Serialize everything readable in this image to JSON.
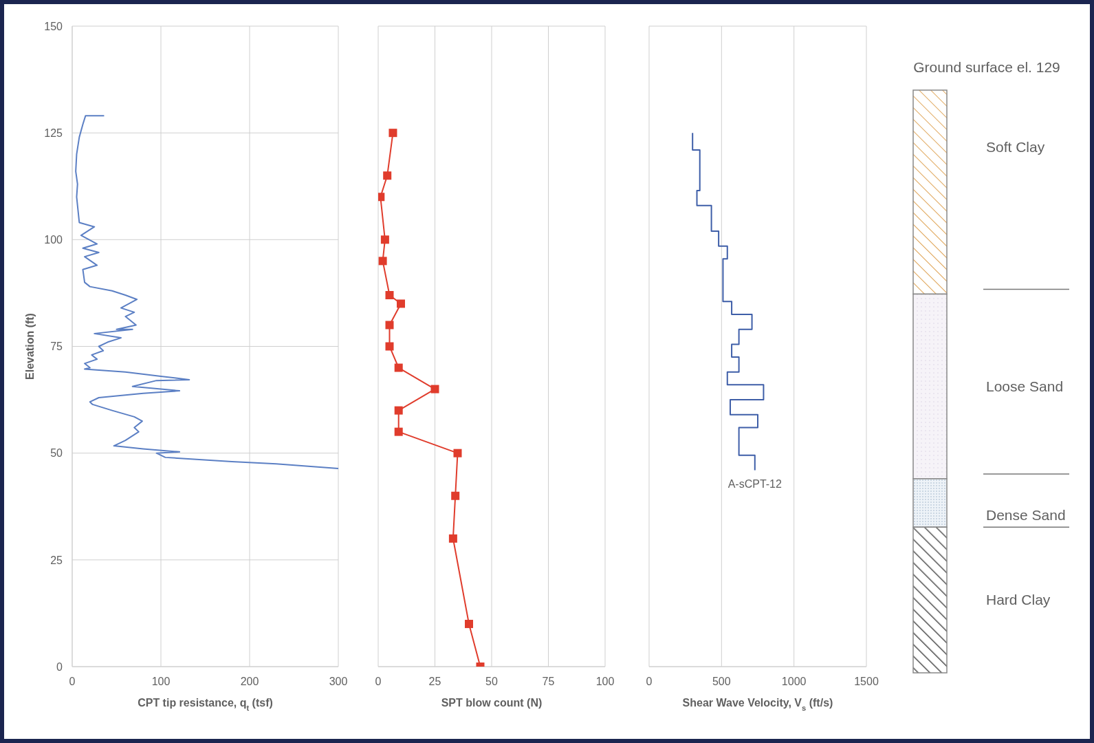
{
  "chart_data": [
    {
      "type": "line",
      "ylabel": "Elevation (ft)",
      "xlabel": "CPT tip resistance, q$_{t}$ (tsf)",
      "xlim": [
        0,
        300
      ],
      "xticks": [
        0,
        100,
        200,
        300
      ],
      "ylim": [
        0,
        150
      ],
      "yticks": [
        0,
        25,
        50,
        75,
        100,
        125,
        150
      ],
      "grid": true,
      "marker": "none",
      "line_style": "solid",
      "color": "#5b7fc4",
      "x": [
        36,
        15,
        12,
        8,
        5,
        4,
        6,
        5,
        7,
        8,
        25,
        10,
        28,
        12,
        30,
        14,
        28,
        12,
        14,
        20,
        45,
        60,
        73,
        55,
        70,
        60,
        72,
        50,
        68,
        25,
        55,
        40,
        30,
        35,
        22,
        28,
        14,
        20,
        14,
        60,
        100,
        132,
        95,
        68,
        121,
        80,
        30,
        20,
        23,
        45,
        70,
        79,
        70,
        75,
        60,
        47,
        80,
        121,
        95,
        105,
        180,
        230,
        300
      ],
      "values": [
        129,
        129,
        127,
        124,
        120,
        116,
        113,
        110,
        106,
        104,
        103,
        101,
        99,
        98,
        97,
        96,
        94,
        93,
        90,
        89,
        88,
        87,
        86,
        84,
        83,
        82,
        80,
        79,
        79,
        78,
        77,
        76,
        75,
        74,
        73,
        72,
        71,
        70,
        69.7,
        69,
        68,
        67.2,
        67,
        65.6,
        64.6,
        64,
        63,
        62,
        61.4,
        60,
        58.5,
        57.5,
        56,
        55,
        53,
        51.7,
        51,
        50.3,
        50,
        49,
        48,
        47.5,
        46.4
      ]
    },
    {
      "type": "line",
      "xlabel": "SPT blow count (N)",
      "xlim": [
        0,
        100
      ],
      "xticks": [
        0,
        25,
        50,
        75,
        100
      ],
      "ylim": [
        0,
        150
      ],
      "yticks": [
        0,
        25,
        50,
        75,
        100,
        125,
        150
      ],
      "tick_labels": "x",
      "grid": true,
      "marker": "square",
      "line_style": "solid",
      "color": "#e03c2c",
      "x": [
        6.5,
        4,
        1,
        3,
        2,
        5,
        10,
        5,
        5,
        9,
        25,
        9,
        9,
        35,
        34,
        33,
        40,
        45
      ],
      "values": [
        125,
        115,
        110,
        100,
        95,
        87,
        85,
        80,
        75,
        70,
        65,
        60,
        55,
        50,
        40,
        30,
        10,
        0
      ]
    },
    {
      "type": "line",
      "xlabel": "Shear Wave Velocity, V$_{s}$ (ft/s)",
      "xlim": [
        0,
        1500
      ],
      "xticks": [
        0,
        500,
        1000,
        1500
      ],
      "ylim": [
        0,
        150
      ],
      "yticks": [
        0,
        25,
        50,
        75,
        100,
        125,
        150
      ],
      "tick_labels": "x",
      "grid": true,
      "marker": "none",
      "line_style": "solid",
      "series": [
        {
          "name": "A-sCPT-12",
          "color": "#3e5ea8",
          "x": [
            300,
            300,
            350,
            350,
            330,
            330,
            430,
            430,
            480,
            480,
            540,
            540,
            510,
            510,
            570,
            570,
            710,
            710,
            620,
            620,
            570,
            570,
            620,
            620,
            540,
            540,
            790,
            790,
            560,
            560,
            750,
            750,
            620,
            620,
            730,
            730
          ],
          "values": [
            125,
            121,
            121,
            111.5,
            111.5,
            108,
            108,
            102,
            102,
            98.5,
            98.5,
            95.5,
            95.5,
            85.5,
            85.5,
            82.5,
            82.5,
            79,
            79,
            75.5,
            75.5,
            72.5,
            72.5,
            69,
            69,
            66,
            66,
            62.5,
            62.5,
            59,
            59,
            56,
            56,
            49.5,
            49.5,
            46
          ]
        }
      ]
    },
    {
      "type": "other",
      "title": "Ground surface el. 129",
      "annotations": [
        "Soft Clay",
        "Loose Sand",
        "Dense Sand",
        "Hard Clay"
      ]
    }
  ]
}
